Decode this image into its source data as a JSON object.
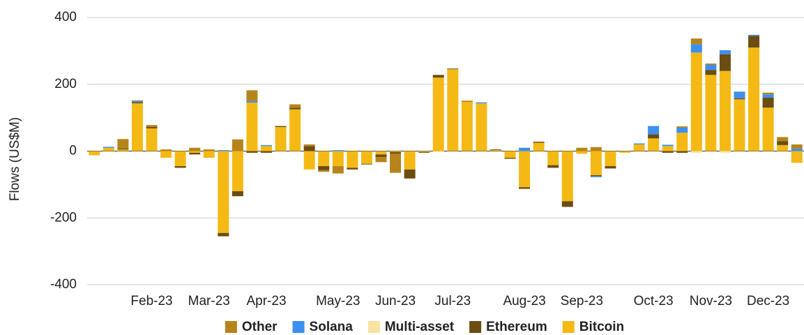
{
  "chart_data": {
    "type": "bar",
    "stacked": true,
    "y_label": "Flows (US$M)",
    "categories": [
      null,
      null,
      null,
      null,
      "Feb-23",
      null,
      null,
      null,
      "Mar-23",
      null,
      null,
      null,
      "Apr-23",
      null,
      null,
      null,
      null,
      "May-23",
      null,
      null,
      null,
      "Jun-23",
      null,
      null,
      null,
      "Jul-23",
      null,
      null,
      null,
      null,
      "Aug-23",
      null,
      null,
      null,
      "Sep-23",
      null,
      null,
      null,
      null,
      "Oct-23",
      null,
      null,
      null,
      "Nov-23",
      null,
      null,
      null,
      "Dec-23",
      null,
      null
    ],
    "series": [
      {
        "name": "Other",
        "color": "#b5841a",
        "values": [
          0,
          0,
          28,
          2,
          6,
          5,
          0,
          10,
          5,
          0,
          35,
          32,
          0,
          0,
          10,
          5,
          -5,
          -22,
          0,
          0,
          -15,
          -57,
          0,
          0,
          0,
          0,
          0,
          0,
          0,
          0,
          0,
          0,
          0,
          0,
          10,
          12,
          0,
          0,
          0,
          0,
          0,
          4,
          17,
          4,
          0,
          0,
          0,
          5,
          12,
          12
        ]
      },
      {
        "name": "Solana",
        "color": "#3d8ff0",
        "values": [
          0,
          3,
          0,
          4,
          0,
          0,
          0,
          0,
          0,
          3,
          0,
          5,
          3,
          0,
          0,
          0,
          0,
          3,
          0,
          0,
          0,
          0,
          0,
          0,
          0,
          0,
          0,
          3,
          0,
          0,
          10,
          0,
          0,
          0,
          0,
          -3,
          0,
          0,
          3,
          25,
          4,
          15,
          25,
          15,
          12,
          20,
          3,
          10,
          0,
          8
        ]
      },
      {
        "name": "Multi-asset",
        "color": "#f8e3a3",
        "values": [
          -2,
          0,
          0,
          0,
          0,
          0,
          0,
          0,
          0,
          0,
          0,
          0,
          0,
          0,
          0,
          0,
          0,
          0,
          0,
          0,
          0,
          0,
          0,
          0,
          -3,
          0,
          4,
          0,
          0,
          0,
          0,
          0,
          0,
          0,
          0,
          0,
          0,
          0,
          0,
          0,
          0,
          0,
          -5,
          0,
          -5,
          0,
          0,
          0,
          0,
          0
        ]
      },
      {
        "name": "Ethereum",
        "color": "#6b4c11",
        "values": [
          0,
          0,
          3,
          3,
          4,
          0,
          -5,
          -5,
          0,
          -10,
          -15,
          -5,
          -5,
          3,
          5,
          15,
          -12,
          0,
          -5,
          -2,
          -8,
          -5,
          -27,
          -2,
          8,
          2,
          2,
          0,
          2,
          -3,
          -5,
          3,
          -8,
          -17,
          0,
          -3,
          -7,
          0,
          0,
          12,
          -5,
          -5,
          0,
          15,
          50,
          3,
          35,
          30,
          12,
          0
        ]
      },
      {
        "name": "Bitcoin",
        "color": "#f4b915",
        "values": [
          -12,
          10,
          5,
          143,
          68,
          -20,
          -45,
          -5,
          -20,
          -245,
          -120,
          145,
          15,
          72,
          125,
          -55,
          -45,
          -45,
          -50,
          -38,
          -10,
          -3,
          -55,
          -3,
          220,
          245,
          148,
          143,
          3,
          -20,
          -108,
          25,
          -42,
          -150,
          -8,
          -72,
          -45,
          -5,
          20,
          38,
          15,
          55,
          295,
          228,
          240,
          155,
          310,
          130,
          18,
          -35
        ]
      }
    ],
    "ylim": [
      -400,
      400
    ],
    "yticks": [
      -400,
      -200,
      0,
      200,
      400
    ],
    "grid": true,
    "legend": "bottom"
  }
}
